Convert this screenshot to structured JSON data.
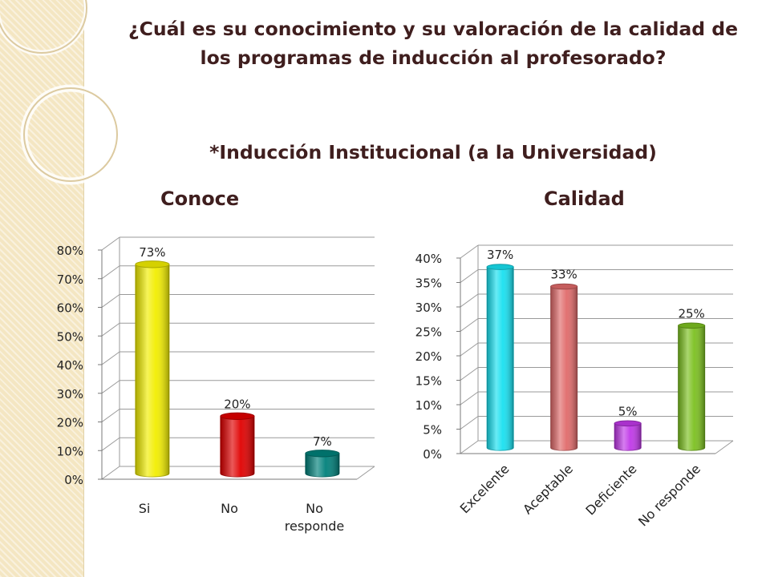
{
  "slide": {
    "title": "¿Cuál es su conocimiento y su valoración de la calidad de los programas de inducción al profesorado?",
    "subtitle": "*Inducción Institucional (a la Universidad)"
  },
  "chart_data": [
    {
      "type": "bar",
      "title": "Conoce",
      "categories": [
        "Si",
        "No",
        "No responde"
      ],
      "values": [
        73,
        20,
        7
      ],
      "data_labels": [
        "73%",
        "20%",
        "7%"
      ],
      "colors": [
        "#f2ee00",
        "#e00000",
        "#00807a"
      ],
      "yticks": [
        "0%",
        "10%",
        "20%",
        "30%",
        "40%",
        "50%",
        "60%",
        "70%",
        "80%"
      ],
      "ylim": [
        0,
        80
      ],
      "grid": true,
      "legend": "none",
      "style": "3d-cylinder"
    },
    {
      "type": "bar",
      "title": "Calidad",
      "categories": [
        "Excelente",
        "Aceptable",
        "Deficiente",
        "No responde"
      ],
      "values": [
        37,
        33,
        5,
        25
      ],
      "data_labels": [
        "37%",
        "33%",
        "5%",
        "25%"
      ],
      "colors": [
        "#18e0f0",
        "#e06a6a",
        "#c038e8",
        "#7cc020"
      ],
      "yticks": [
        "0%",
        "5%",
        "10%",
        "15%",
        "20%",
        "25%",
        "30%",
        "35%",
        "40%"
      ],
      "ylim": [
        0,
        40
      ],
      "grid": true,
      "legend": "none",
      "style": "3d-cylinder"
    }
  ]
}
